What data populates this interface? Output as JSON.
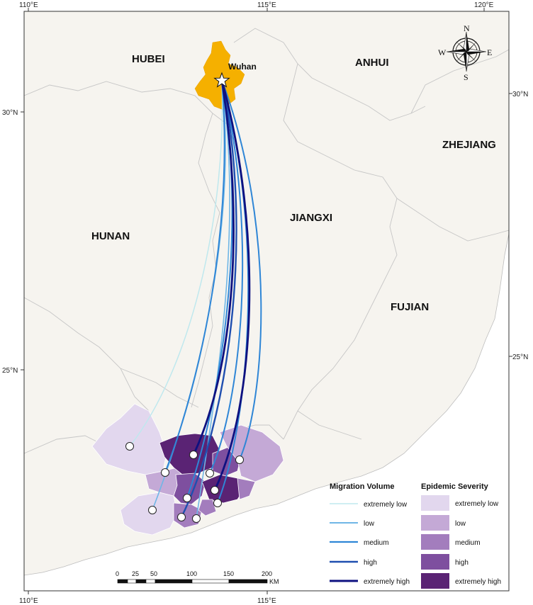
{
  "axes": {
    "top": [
      "110°E",
      "115°E",
      "120°E"
    ],
    "bottom": [
      "110°E",
      "115°E"
    ],
    "left": [
      "30°N",
      "25°N"
    ],
    "right": [
      "30°N",
      "25°N"
    ]
  },
  "regions": [
    "HUBEI",
    "ANHUI",
    "ZHEJIANG",
    "JIANGXI",
    "HUNAN",
    "FUJIAN"
  ],
  "origin_city": "Wuhan",
  "compass": {
    "n": "N",
    "s": "S",
    "e": "E",
    "w": "W"
  },
  "legend": {
    "migration_title": "Migration Volume",
    "migration_items": [
      {
        "label": "extremely low",
        "color": "#bfe8ee"
      },
      {
        "label": "low",
        "color": "#6fb6e6"
      },
      {
        "label": "medium",
        "color": "#2f86d6"
      },
      {
        "label": "high",
        "color": "#1f4fb0"
      },
      {
        "label": "extremely high",
        "color": "#0e1180"
      }
    ],
    "severity_title": "Epidemic Severity",
    "severity_items": [
      {
        "label": "extremely low",
        "color": "#e2d7ee"
      },
      {
        "label": "low",
        "color": "#c4a9d6"
      },
      {
        "label": "medium",
        "color": "#a37dbd"
      },
      {
        "label": "high",
        "color": "#7e4f9f"
      },
      {
        "label": "extremely high",
        "color": "#5a2374"
      }
    ]
  },
  "scale_bar": {
    "ticks": [
      "0",
      "25",
      "50",
      "100",
      "150",
      "200"
    ],
    "unit": "KM"
  },
  "colors": {
    "land": "#f6f4ef",
    "sea": "#ffffff",
    "border": "#c9c9c9",
    "wuhan": "#f5b000",
    "frame": "#333333"
  }
}
